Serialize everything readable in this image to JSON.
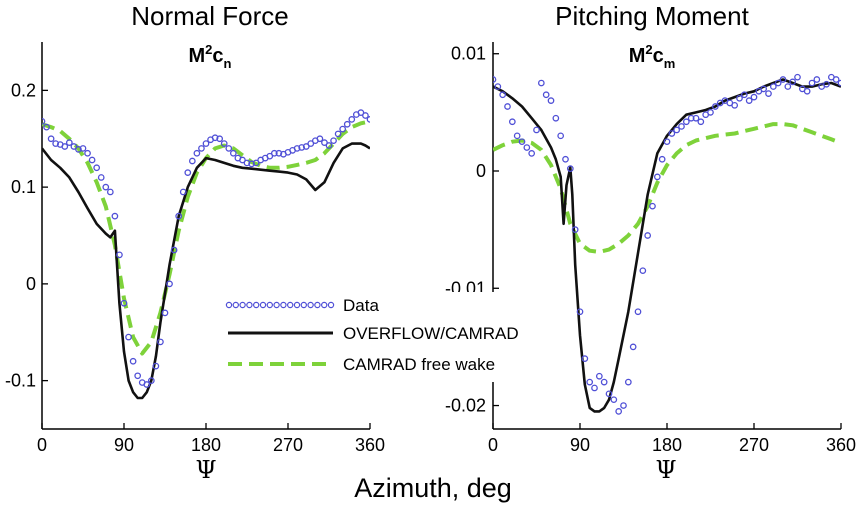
{
  "chart_data": [
    {
      "type": "line",
      "title": "Normal Force",
      "subtitle": "M²c_n",
      "subtitle_base": "M",
      "subtitle_sup": "2",
      "subtitle_var": "c",
      "subtitle_sub": "n",
      "xlabel": "Ψ",
      "xlim": [
        0,
        360
      ],
      "ylim": [
        -0.15,
        0.25
      ],
      "xticks": [
        0,
        90,
        180,
        270,
        360
      ],
      "yticks": [
        -0.1,
        0,
        0.1,
        0.2
      ],
      "ytick_labels": [
        "-0.1",
        "0",
        "0.1",
        "0.2"
      ],
      "series": [
        {
          "name": "Data",
          "style": "circles",
          "color": "#4f4fd6",
          "x": [
            0,
            5,
            10,
            15,
            20,
            25,
            30,
            35,
            40,
            45,
            50,
            55,
            60,
            65,
            70,
            75,
            80,
            85,
            90,
            95,
            100,
            105,
            110,
            115,
            120,
            125,
            130,
            135,
            140,
            145,
            150,
            155,
            160,
            165,
            170,
            175,
            180,
            185,
            190,
            195,
            200,
            205,
            210,
            215,
            220,
            225,
            230,
            235,
            240,
            245,
            250,
            255,
            260,
            265,
            270,
            275,
            280,
            285,
            290,
            295,
            300,
            305,
            310,
            315,
            320,
            325,
            330,
            335,
            340,
            345,
            350,
            355,
            360
          ],
          "y": [
            0.168,
            0.162,
            0.15,
            0.145,
            0.144,
            0.142,
            0.146,
            0.142,
            0.139,
            0.14,
            0.135,
            0.128,
            0.12,
            0.11,
            0.1,
            0.095,
            0.07,
            0.03,
            -0.02,
            -0.055,
            -0.08,
            -0.095,
            -0.102,
            -0.104,
            -0.1,
            -0.085,
            -0.06,
            -0.03,
            0.0,
            0.035,
            0.07,
            0.095,
            0.115,
            0.127,
            0.135,
            0.14,
            0.145,
            0.149,
            0.151,
            0.15,
            0.145,
            0.14,
            0.135,
            0.13,
            0.128,
            0.125,
            0.124,
            0.125,
            0.128,
            0.13,
            0.132,
            0.135,
            0.135,
            0.134,
            0.136,
            0.138,
            0.14,
            0.141,
            0.142,
            0.145,
            0.148,
            0.15,
            0.146,
            0.143,
            0.148,
            0.155,
            0.16,
            0.165,
            0.17,
            0.175,
            0.177,
            0.174,
            0.17
          ]
        },
        {
          "name": "OVERFLOW/CAMRAD",
          "style": "solid",
          "color": "#111111",
          "x": [
            0,
            10,
            20,
            30,
            40,
            50,
            60,
            70,
            75,
            80,
            85,
            90,
            95,
            100,
            105,
            110,
            115,
            120,
            125,
            130,
            140,
            150,
            160,
            170,
            180,
            190,
            200,
            210,
            220,
            230,
            240,
            250,
            260,
            270,
            280,
            290,
            300,
            310,
            320,
            330,
            340,
            350,
            355,
            360
          ],
          "y": [
            0.14,
            0.128,
            0.12,
            0.11,
            0.095,
            0.078,
            0.062,
            0.052,
            0.048,
            0.055,
            -0.02,
            -0.07,
            -0.1,
            -0.112,
            -0.118,
            -0.118,
            -0.112,
            -0.1,
            -0.075,
            -0.04,
            0.02,
            0.07,
            0.1,
            0.12,
            0.13,
            0.128,
            0.125,
            0.122,
            0.12,
            0.119,
            0.118,
            0.117,
            0.116,
            0.115,
            0.113,
            0.108,
            0.097,
            0.105,
            0.125,
            0.14,
            0.145,
            0.145,
            0.143,
            0.14
          ]
        },
        {
          "name": "CAMRAD free wake",
          "style": "dashed",
          "color": "#7ed23a",
          "x": [
            0,
            10,
            20,
            30,
            40,
            50,
            60,
            70,
            80,
            90,
            100,
            110,
            120,
            130,
            140,
            150,
            160,
            170,
            180,
            190,
            200,
            210,
            220,
            230,
            240,
            250,
            260,
            270,
            280,
            290,
            300,
            310,
            320,
            330,
            340,
            350,
            360
          ],
          "y": [
            0.165,
            0.162,
            0.158,
            0.15,
            0.14,
            0.125,
            0.105,
            0.08,
            0.04,
            -0.015,
            -0.055,
            -0.072,
            -0.06,
            -0.03,
            0.01,
            0.055,
            0.09,
            0.115,
            0.13,
            0.14,
            0.143,
            0.14,
            0.133,
            0.126,
            0.122,
            0.12,
            0.12,
            0.121,
            0.123,
            0.125,
            0.128,
            0.135,
            0.145,
            0.155,
            0.162,
            0.166,
            0.168
          ]
        }
      ]
    },
    {
      "type": "line",
      "title": "Pitching Moment",
      "subtitle": "M²c_m",
      "subtitle_base": "M",
      "subtitle_sup": "2",
      "subtitle_var": "c",
      "subtitle_sub": "m",
      "xlabel": "Ψ",
      "xlim": [
        0,
        360
      ],
      "ylim": [
        -0.022,
        0.011
      ],
      "xticks": [
        0,
        90,
        180,
        270,
        360
      ],
      "yticks": [
        -0.02,
        -0.01,
        0,
        0.01
      ],
      "ytick_labels": [
        "-0.02",
        "-0.01",
        "0",
        "0.01"
      ],
      "series": [
        {
          "name": "Data",
          "style": "circles",
          "color": "#4f4fd6",
          "x": [
            0,
            5,
            10,
            15,
            20,
            25,
            30,
            35,
            40,
            45,
            50,
            55,
            60,
            65,
            70,
            75,
            80,
            85,
            90,
            95,
            100,
            105,
            110,
            115,
            120,
            125,
            130,
            135,
            140,
            145,
            150,
            155,
            160,
            165,
            170,
            175,
            180,
            185,
            190,
            195,
            200,
            205,
            210,
            215,
            220,
            225,
            230,
            235,
            240,
            245,
            250,
            255,
            260,
            265,
            270,
            275,
            280,
            285,
            290,
            295,
            300,
            305,
            310,
            315,
            320,
            325,
            330,
            335,
            340,
            345,
            350,
            355,
            360
          ],
          "y": [
            0.0078,
            0.0072,
            0.0065,
            0.0055,
            0.0042,
            0.003,
            0.0025,
            0.002,
            0.0015,
            0.0035,
            0.0075,
            0.0065,
            0.006,
            0.0045,
            0.003,
            0.001,
            0.0002,
            -0.005,
            -0.012,
            -0.016,
            -0.018,
            -0.0185,
            -0.0175,
            -0.018,
            -0.019,
            -0.0195,
            -0.0205,
            -0.02,
            -0.018,
            -0.015,
            -0.012,
            -0.0085,
            -0.0055,
            -0.003,
            -0.0005,
            0.001,
            0.0025,
            0.0032,
            0.0035,
            0.0038,
            0.0042,
            0.0045,
            0.0045,
            0.0042,
            0.0048,
            0.005,
            0.0055,
            0.0058,
            0.006,
            0.0058,
            0.0056,
            0.0062,
            0.0065,
            0.006,
            0.0063,
            0.0068,
            0.007,
            0.0066,
            0.0072,
            0.0075,
            0.0078,
            0.0072,
            0.0076,
            0.008,
            0.007,
            0.0068,
            0.0075,
            0.0078,
            0.0072,
            0.0074,
            0.008,
            0.0078,
            0.0075
          ]
        },
        {
          "name": "OVERFLOW/CAMRAD",
          "style": "solid",
          "color": "#111111",
          "x": [
            0,
            10,
            20,
            30,
            40,
            50,
            60,
            65,
            70,
            73,
            76,
            80,
            82,
            85,
            90,
            95,
            100,
            105,
            110,
            115,
            120,
            125,
            130,
            140,
            150,
            160,
            170,
            180,
            190,
            200,
            210,
            220,
            230,
            240,
            250,
            260,
            270,
            280,
            290,
            300,
            310,
            320,
            330,
            340,
            350,
            360
          ],
          "y": [
            0.0072,
            0.0068,
            0.0062,
            0.0055,
            0.0045,
            0.0035,
            0.002,
            0.001,
            -0.0005,
            -0.0045,
            -0.0012,
            0.0003,
            -0.002,
            -0.008,
            -0.014,
            -0.0182,
            -0.0202,
            -0.0205,
            -0.0205,
            -0.0202,
            -0.0195,
            -0.018,
            -0.016,
            -0.012,
            -0.007,
            -0.002,
            0.0015,
            0.003,
            0.004,
            0.0048,
            0.005,
            0.0052,
            0.0055,
            0.006,
            0.0063,
            0.0066,
            0.0068,
            0.0072,
            0.0075,
            0.0078,
            0.0075,
            0.0072,
            0.0072,
            0.0074,
            0.0075,
            0.0072
          ]
        },
        {
          "name": "CAMRAD free wake",
          "style": "dashed",
          "color": "#7ed23a",
          "x": [
            0,
            10,
            20,
            30,
            40,
            50,
            60,
            70,
            80,
            90,
            100,
            110,
            120,
            130,
            140,
            150,
            160,
            170,
            180,
            190,
            200,
            210,
            220,
            230,
            240,
            250,
            260,
            270,
            280,
            290,
            300,
            310,
            320,
            330,
            340,
            350,
            360
          ],
          "y": [
            0.0018,
            0.0022,
            0.0025,
            0.0026,
            0.0024,
            0.0018,
            0.0005,
            -0.0015,
            -0.0045,
            -0.0062,
            -0.0068,
            -0.0069,
            -0.0067,
            -0.0062,
            -0.0055,
            -0.0045,
            -0.003,
            -0.001,
            0.0005,
            0.0015,
            0.0022,
            0.0026,
            0.0028,
            0.003,
            0.0031,
            0.0032,
            0.0034,
            0.0036,
            0.0038,
            0.004,
            0.004,
            0.0039,
            0.0036,
            0.0033,
            0.003,
            0.0027,
            0.0024
          ]
        }
      ]
    }
  ],
  "shared_xlabel": "Azimuth, deg",
  "legend": {
    "placement": "center",
    "entries": [
      "Data",
      "OVERFLOW/CAMRAD",
      "CAMRAD free wake"
    ]
  }
}
